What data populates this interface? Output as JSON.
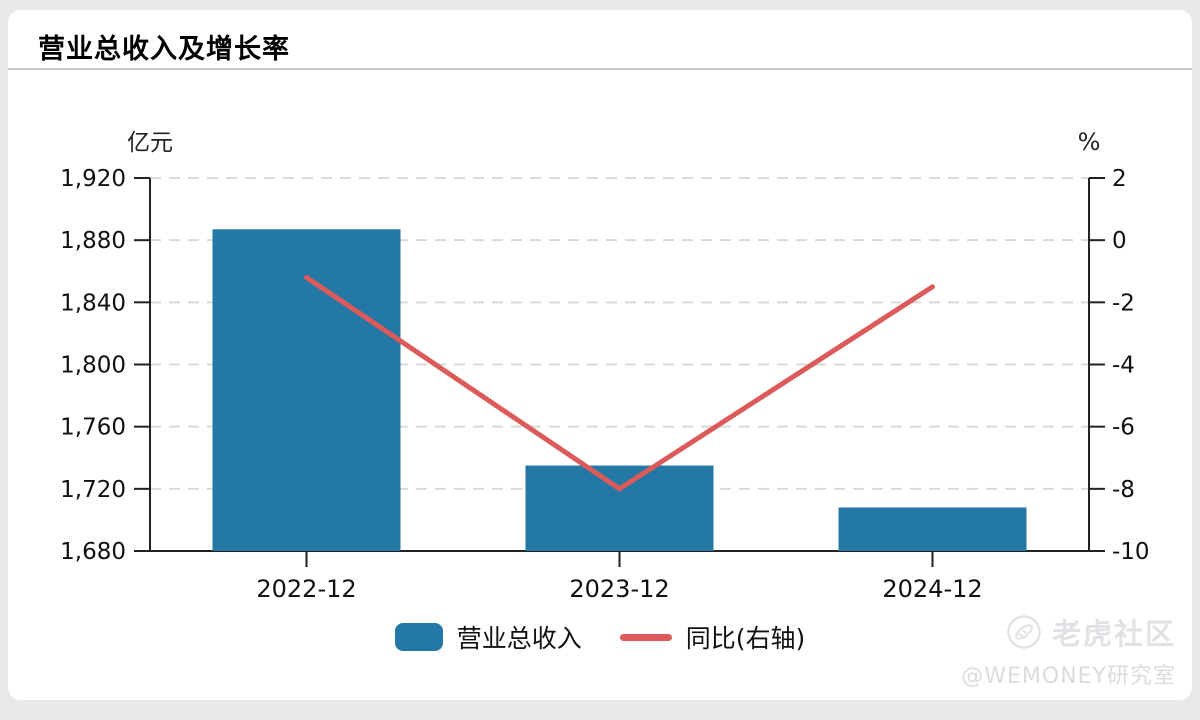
{
  "window": {
    "title": "营业总收入及增长率"
  },
  "chart_data": {
    "type": "bar",
    "title": "营业总收入及增长率",
    "categories": [
      "2022-12",
      "2023-12",
      "2024-12"
    ],
    "series": [
      {
        "name": "营业总收入",
        "type": "bar",
        "axis": "left",
        "unit": "亿元",
        "values": [
          1887,
          1735,
          1708
        ],
        "color": "#2478a6"
      },
      {
        "name": "同比(右轴)",
        "type": "line",
        "axis": "right",
        "unit": "%",
        "values": [
          -1.2,
          -8.0,
          -1.5
        ],
        "color": "#dd5a5a"
      }
    ],
    "left_axis": {
      "label": "亿元",
      "min": 1680,
      "max": 1920,
      "step": 40,
      "tick_labels": [
        "1,920",
        "1,880",
        "1,840",
        "1,800",
        "1,760",
        "1,720",
        "1,680"
      ]
    },
    "right_axis": {
      "label": "%",
      "min": -10,
      "max": 2,
      "step": 2,
      "tick_labels": [
        "2",
        "0",
        "-2",
        "-4",
        "-6",
        "-8",
        "-10"
      ]
    },
    "grid": "horizontal-dashed",
    "legend_position": "bottom",
    "colors": {
      "axis": "#222222",
      "gridline": "#d9d9d9",
      "text": "#111111",
      "bar": "#2478a6",
      "line": "#dd5a5a"
    }
  },
  "legend": {
    "items": [
      {
        "label": "营业总收入",
        "swatch": "bar",
        "color": "#2478a6"
      },
      {
        "label": "同比(右轴)",
        "swatch": "line",
        "color": "#dd5a5a"
      }
    ]
  },
  "watermark": {
    "brand": "老虎社区",
    "handle": "@WEMONEY研究室"
  }
}
